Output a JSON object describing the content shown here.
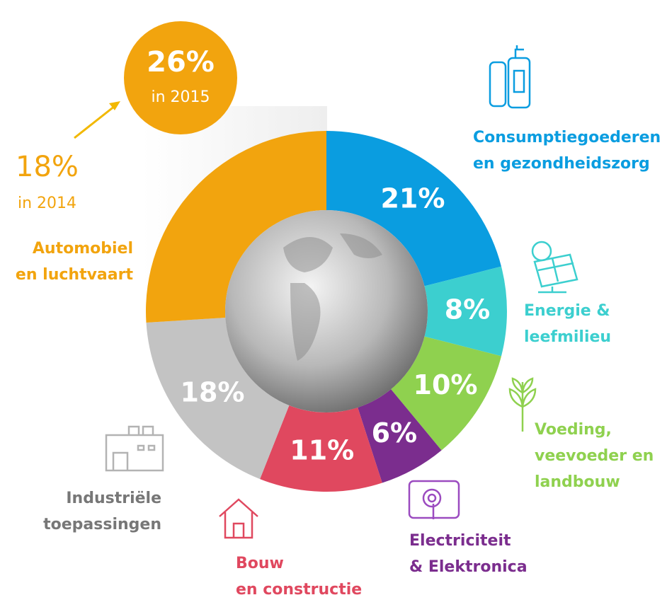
{
  "chart_data": {
    "type": "donut",
    "categories": [
      "Consumptiegoederen\nen gezondheidszorg",
      "Energie &\nleefmilieu",
      "Voeding,\nveevoeder en\nlandbouw",
      "Electriciteit\n& Elektronica",
      "Bouw\nen constructie",
      "Industriële\ntoepassingen",
      "Automobiel\nen luchtvaart"
    ],
    "values": [
      21,
      8,
      10,
      6,
      11,
      18,
      26
    ],
    "value_labels": [
      "21%",
      "8%",
      "10%",
      "6%",
      "11%",
      "18%",
      "26%"
    ],
    "colors": [
      "#0a9de0",
      "#3ccfcf",
      "#8fd14f",
      "#7b2d8e",
      "#e0485f",
      "#c3c3c3",
      "#f2a40e"
    ],
    "highlight": {
      "caption": "in 2015",
      "previous_label": "18%",
      "previous_caption": "in 2014"
    }
  }
}
